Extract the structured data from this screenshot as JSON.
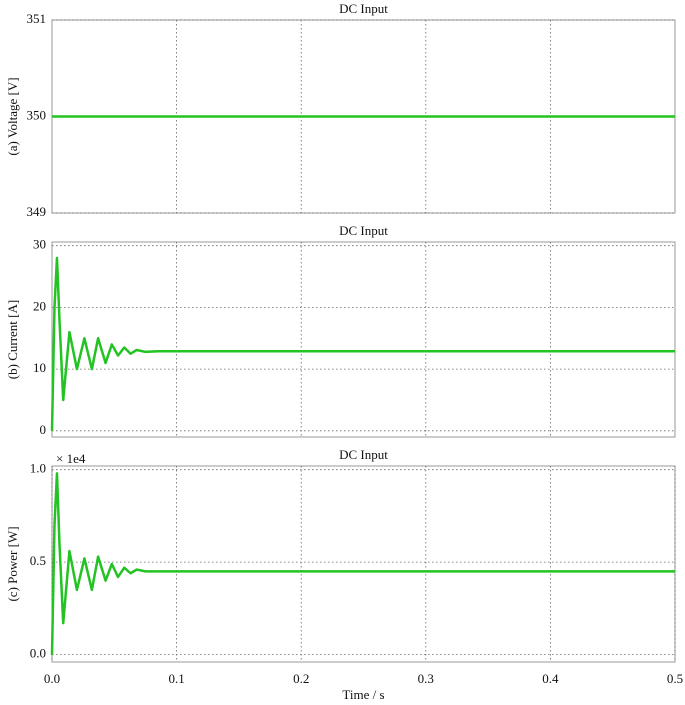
{
  "chart_data": [
    {
      "type": "line",
      "title": "DC Input",
      "ylabel": "(a) Voltage [V]",
      "x": [
        0,
        0.5
      ],
      "values": [
        350,
        350
      ],
      "color": "#22c322",
      "xlim": [
        0,
        0.5
      ],
      "xticks": [
        0.1,
        0.2,
        0.3,
        0.4
      ],
      "ylim": [
        349,
        351
      ],
      "yticks": [
        349,
        350,
        351
      ],
      "grid": true
    },
    {
      "type": "line",
      "title": "DC Input",
      "ylabel": "(b) Current [A]",
      "x": [
        0,
        0.002,
        0.004,
        0.006,
        0.009,
        0.014,
        0.02,
        0.026,
        0.032,
        0.037,
        0.043,
        0.048,
        0.053,
        0.058,
        0.063,
        0.068,
        0.075,
        0.085,
        0.1,
        0.5
      ],
      "values": [
        0,
        20,
        28,
        18,
        5,
        16,
        10,
        15,
        10,
        15,
        11,
        14,
        12.2,
        13.5,
        12.5,
        13.1,
        12.8,
        12.9,
        12.9,
        12.9
      ],
      "color": "#22c322",
      "xlim": [
        0,
        0.5
      ],
      "xticks": [
        0.1,
        0.2,
        0.3,
        0.4
      ],
      "ylim": [
        -1,
        30.6
      ],
      "yticks": [
        0,
        10,
        20,
        30
      ],
      "grid": true
    },
    {
      "type": "line",
      "title": "DC Input",
      "ylabel": "(c) Power [W]",
      "xlabel": "Time / s",
      "annotation": "× 1e4",
      "x": [
        0,
        0.002,
        0.004,
        0.006,
        0.009,
        0.014,
        0.02,
        0.026,
        0.032,
        0.037,
        0.043,
        0.048,
        0.053,
        0.058,
        0.063,
        0.068,
        0.075,
        0.085,
        0.1,
        0.5
      ],
      "values": [
        0,
        0.7,
        0.98,
        0.6,
        0.17,
        0.56,
        0.35,
        0.52,
        0.35,
        0.53,
        0.4,
        0.49,
        0.42,
        0.47,
        0.44,
        0.46,
        0.45,
        0.45,
        0.45,
        0.45
      ],
      "color": "#22c322",
      "xlim": [
        0,
        0.5
      ],
      "xticks": [
        {
          "value": 0,
          "label": "0.0"
        },
        0.1,
        0.2,
        0.3,
        0.4,
        0.5
      ],
      "ylim": [
        -0.04,
        1.02
      ],
      "yticks": [
        {
          "value": 0,
          "label": "0.0"
        },
        0.5,
        {
          "value": 1,
          "label": "1.0"
        }
      ],
      "grid": true
    }
  ]
}
